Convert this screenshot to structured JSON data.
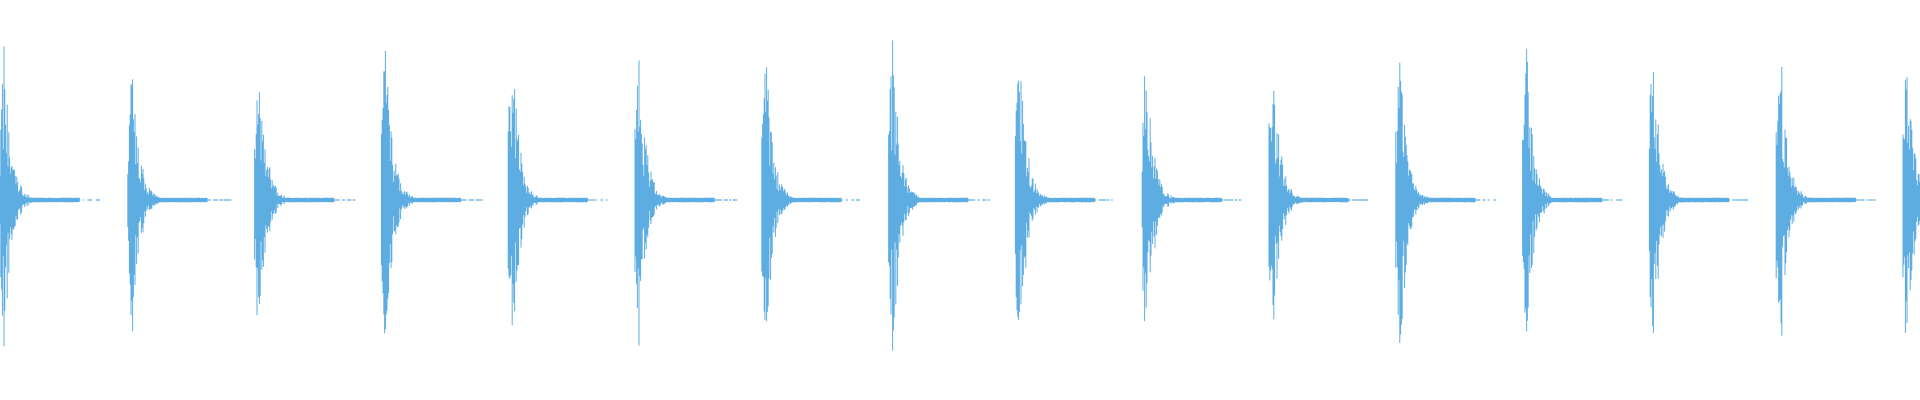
{
  "chart_data": {
    "type": "area",
    "description_kind": "audio-waveform",
    "color": "#5dade2",
    "background": "#ffffff",
    "ylim": [
      -1,
      1
    ],
    "grid": false,
    "bursts": [
      {
        "index": 1,
        "peak_amplitude": 0.82
      },
      {
        "index": 2,
        "peak_amplitude": 0.79
      },
      {
        "index": 3,
        "peak_amplitude": 0.81
      },
      {
        "index": 4,
        "peak_amplitude": 0.86
      },
      {
        "index": 5,
        "peak_amplitude": 0.84
      },
      {
        "index": 6,
        "peak_amplitude": 0.79
      },
      {
        "index": 7,
        "peak_amplitude": 0.82
      },
      {
        "index": 8,
        "peak_amplitude": 0.86
      },
      {
        "index": 9,
        "peak_amplitude": 0.84
      },
      {
        "index": 10,
        "peak_amplitude": 0.85
      },
      {
        "index": 11,
        "peak_amplitude": 0.8
      },
      {
        "index": 12,
        "peak_amplitude": 0.88
      },
      {
        "index": 13,
        "peak_amplitude": 0.8
      },
      {
        "index": 14,
        "peak_amplitude": 0.88
      },
      {
        "index": 15,
        "peak_amplitude": 0.86
      },
      {
        "index": 16,
        "peak_amplitude": 0.86
      }
    ]
  }
}
